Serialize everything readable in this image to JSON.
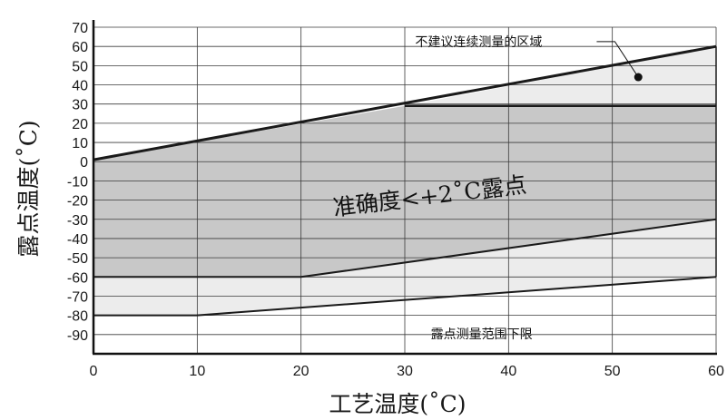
{
  "chart_data": {
    "type": "area",
    "xlabel": "工艺温度(˚C)",
    "ylabel": "露点温度(˚C)",
    "xlim": [
      0,
      60
    ],
    "ylim": [
      -100,
      70
    ],
    "x_ticks": [
      0,
      10,
      20,
      30,
      40,
      50,
      60
    ],
    "y_ticks": [
      70,
      60,
      50,
      40,
      30,
      20,
      10,
      0,
      -10,
      -20,
      -30,
      -40,
      -50,
      -60,
      -70,
      -80,
      -90
    ],
    "grid": true,
    "regions": [
      {
        "label": "不建议连续测量的区域",
        "fill": "#ececec",
        "points": [
          [
            30,
            29
          ],
          [
            60,
            60
          ],
          [
            60,
            29
          ]
        ]
      },
      {
        "label": "准确度<+2˚C露点",
        "fill": "#c8c8c8",
        "points": [
          [
            0,
            1
          ],
          [
            30,
            29
          ],
          [
            60,
            29
          ],
          [
            60,
            -30
          ],
          [
            20,
            -60
          ],
          [
            0,
            -60
          ]
        ]
      },
      {
        "label": "露点测量范围下限",
        "fill": "#ececec",
        "points": [
          [
            0,
            -60
          ],
          [
            20,
            -60
          ],
          [
            60,
            -30
          ],
          [
            60,
            -60
          ],
          [
            10,
            -80
          ],
          [
            0,
            -80
          ]
        ]
      }
    ],
    "boundary_lines": [
      {
        "points": [
          [
            0,
            1
          ],
          [
            60,
            60
          ]
        ],
        "width": 3
      },
      {
        "points": [
          [
            30,
            29
          ],
          [
            60,
            29
          ]
        ],
        "width": 2.5
      },
      {
        "points": [
          [
            0,
            -60
          ],
          [
            20,
            -60
          ],
          [
            60,
            -30
          ]
        ],
        "width": 2
      },
      {
        "points": [
          [
            0,
            -80
          ],
          [
            10,
            -80
          ],
          [
            60,
            -60
          ]
        ],
        "width": 2
      },
      {
        "points": [
          [
            60,
            -60
          ],
          [
            60,
            60
          ]
        ],
        "width": 1.5
      }
    ],
    "marker": {
      "x": 52.5,
      "y": 44
    },
    "annotations": [
      {
        "text": "不建议连续测量的区域",
        "x": 31,
        "y": 62.5,
        "leader_to": [
          52.5,
          44
        ]
      },
      {
        "text": "准确度<+2˚C露点",
        "x": 32.5,
        "y": -22,
        "rotate": -7
      },
      {
        "text": "露点测量范围下限",
        "x": 32.5,
        "y": -89.5
      }
    ]
  }
}
